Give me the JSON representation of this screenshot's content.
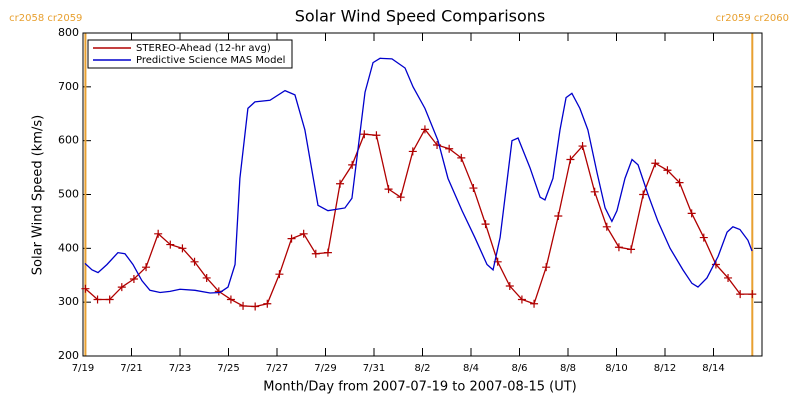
{
  "chart_data": {
    "type": "line",
    "title": "Solar Wind Speed Comparisons",
    "xlabel": "Month/Day from 2007-07-19 to 2007-08-15 (UT)",
    "ylabel": "Solar Wind Speed (km/s)",
    "xlim": [
      0,
      28
    ],
    "ylim": [
      200,
      800
    ],
    "yticks": [
      200,
      300,
      400,
      500,
      600,
      700,
      800
    ],
    "xticks": [
      {
        "value": 0,
        "label": "7/19"
      },
      {
        "value": 2,
        "label": "7/21"
      },
      {
        "value": 4,
        "label": "7/23"
      },
      {
        "value": 6,
        "label": "7/25"
      },
      {
        "value": 8,
        "label": "7/27"
      },
      {
        "value": 10,
        "label": "7/29"
      },
      {
        "value": 12,
        "label": "7/31"
      },
      {
        "value": 14,
        "label": "8/2"
      },
      {
        "value": 16,
        "label": "8/4"
      },
      {
        "value": 18,
        "label": "8/6"
      },
      {
        "value": 20,
        "label": "8/8"
      },
      {
        "value": 22,
        "label": "8/10"
      },
      {
        "value": 24,
        "label": "8/12"
      },
      {
        "value": 26,
        "label": "8/14"
      }
    ],
    "legend": "upper left",
    "boundaries": [
      {
        "x": 0.1,
        "label": "cr2058 cr2059",
        "color": "#e8a030"
      },
      {
        "x": 27.6,
        "label": "cr2059 cr2060",
        "color": "#e8a030"
      }
    ],
    "series": [
      {
        "name": "STEREO-Ahead (12-hr avg)",
        "color": "#b00000",
        "marker": "+",
        "x": [
          0.1,
          0.6,
          1.1,
          1.6,
          2.1,
          2.6,
          3.1,
          3.6,
          4.1,
          4.6,
          5.1,
          5.6,
          6.1,
          6.6,
          7.1,
          7.6,
          8.1,
          8.6,
          9.1,
          9.6,
          10.1,
          10.6,
          11.1,
          11.6,
          12.1,
          12.6,
          13.1,
          13.6,
          14.1,
          14.6,
          15.1,
          15.6,
          16.1,
          16.6,
          17.1,
          17.6,
          18.1,
          18.6,
          19.1,
          19.6,
          20.1,
          20.6,
          21.1,
          21.6,
          22.1,
          22.6,
          23.1,
          23.6,
          24.1,
          24.6,
          25.1,
          25.6,
          26.1,
          26.6,
          27.1,
          27.6
        ],
        "values": [
          325,
          305,
          305,
          328,
          343,
          365,
          427,
          407,
          400,
          375,
          345,
          320,
          305,
          293,
          292,
          297,
          352,
          418,
          427,
          390,
          392,
          520,
          555,
          612,
          610,
          510,
          495,
          580,
          621,
          592,
          585,
          568,
          512,
          445,
          375,
          330,
          305,
          297,
          365,
          460,
          565,
          590,
          505,
          440,
          402,
          398,
          500,
          558,
          545,
          522,
          465,
          420,
          370,
          345,
          315,
          315
        ]
      },
      {
        "name": "Predictive Science MAS Model",
        "color": "#0000cc",
        "x": [
          0.08,
          0.37,
          0.62,
          0.99,
          1.44,
          1.73,
          2.06,
          2.43,
          2.76,
          3.18,
          3.59,
          4.0,
          4.62,
          5.24,
          5.65,
          5.98,
          6.27,
          6.47,
          6.8,
          7.09,
          7.71,
          8.33,
          8.74,
          9.15,
          9.69,
          10.1,
          10.8,
          11.09,
          11.63,
          11.96,
          12.25,
          12.74,
          13.28,
          13.61,
          14.1,
          14.64,
          15.05,
          15.63,
          16.16,
          16.66,
          16.91,
          17.2,
          17.69,
          17.94,
          18.43,
          18.85,
          19.05,
          19.38,
          19.67,
          19.92,
          20.16,
          20.49,
          20.82,
          21.2,
          21.53,
          21.81,
          22.02,
          22.35,
          22.64,
          22.89,
          23.3,
          23.71,
          24.21,
          24.74,
          25.11,
          25.36,
          25.73,
          26.19,
          26.56,
          26.8,
          27.09,
          27.42,
          27.59
        ],
        "values": [
          372,
          360,
          355,
          370,
          392,
          390,
          370,
          340,
          322,
          318,
          320,
          324,
          322,
          317,
          318,
          328,
          370,
          530,
          660,
          672,
          675,
          693,
          685,
          620,
          480,
          470,
          475,
          493,
          690,
          745,
          753,
          752,
          735,
          700,
          660,
          600,
          530,
          470,
          420,
          370,
          360,
          420,
          600,
          605,
          550,
          495,
          490,
          530,
          620,
          680,
          688,
          660,
          620,
          540,
          475,
          450,
          470,
          530,
          565,
          555,
          500,
          450,
          400,
          360,
          335,
          328,
          345,
          385,
          430,
          440,
          435,
          415,
          395
        ]
      }
    ]
  }
}
